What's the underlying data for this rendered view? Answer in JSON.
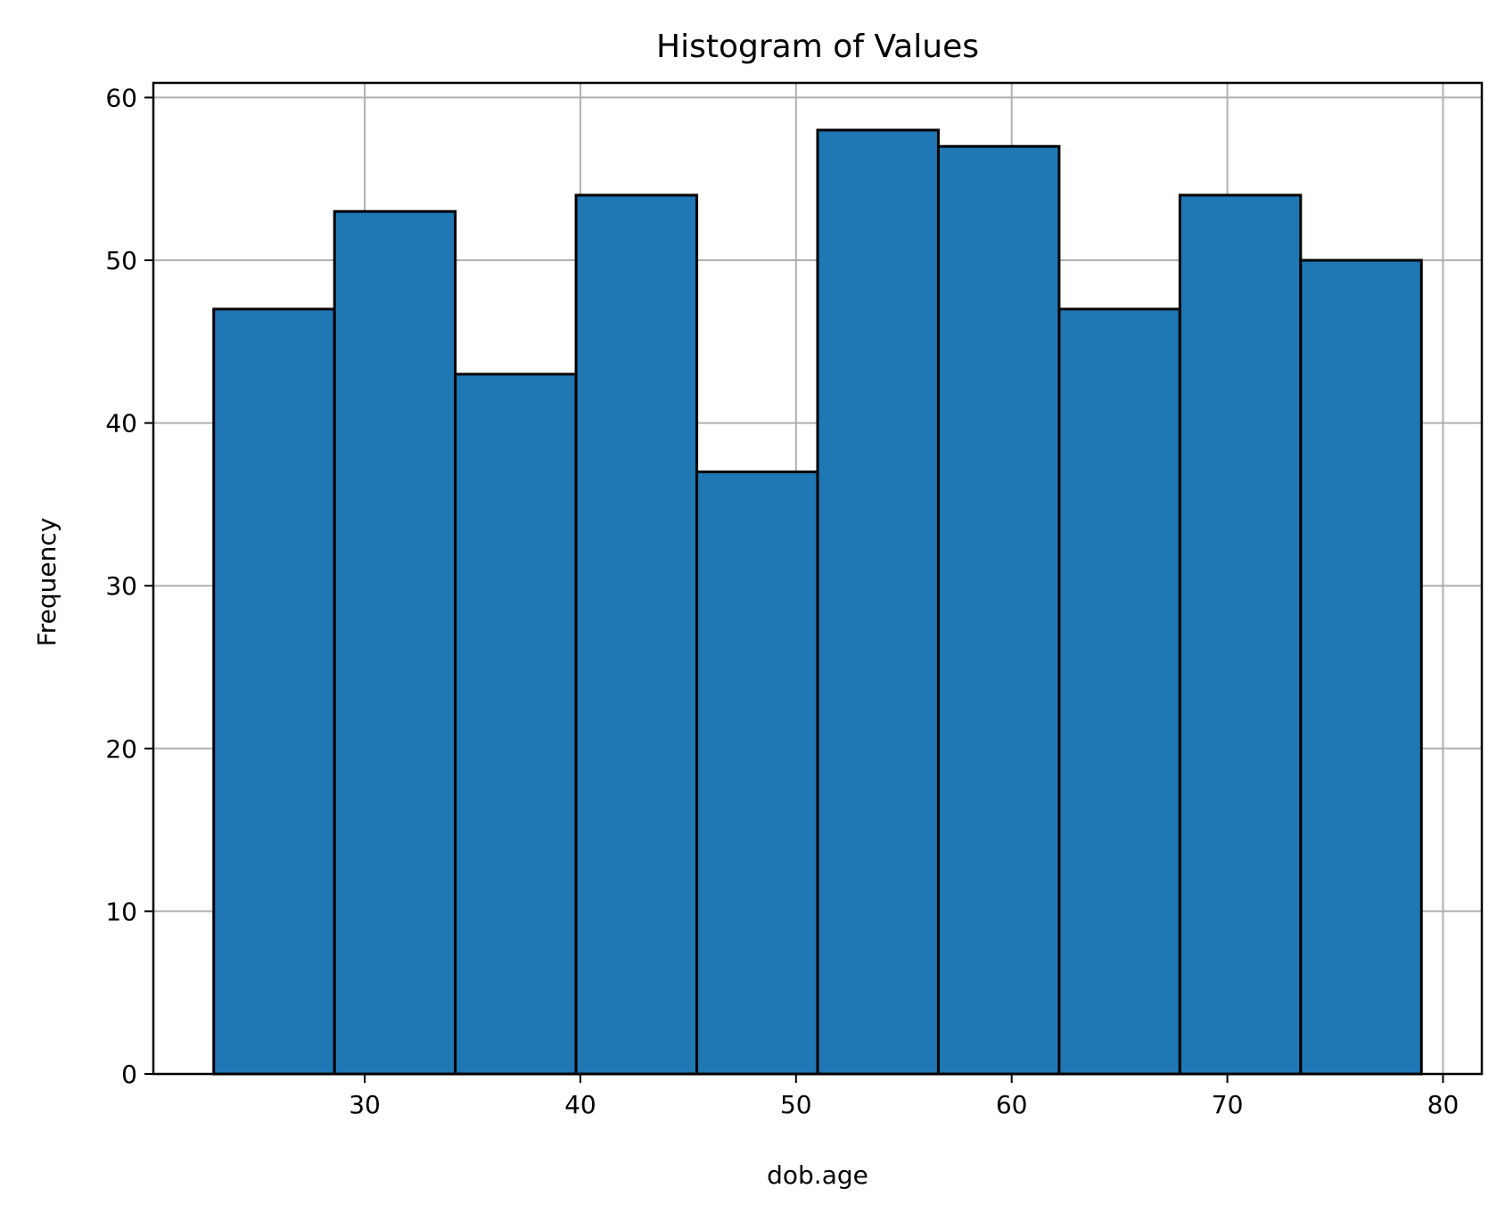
{
  "chart_data": {
    "type": "bar",
    "title": "Histogram of Values",
    "xlabel": "dob.age",
    "ylabel": "Frequency",
    "bin_edges": [
      23,
      28.6,
      34.2,
      39.8,
      45.4,
      51,
      56.6,
      62.2,
      67.8,
      73.4,
      79
    ],
    "values": [
      47,
      53,
      43,
      54,
      37,
      58,
      57,
      47,
      54,
      50
    ],
    "xlim": [
      20.2,
      81.8
    ],
    "ylim": [
      0,
      60.9
    ],
    "xticks": [
      30,
      40,
      50,
      60,
      70,
      80
    ],
    "yticks": [
      0,
      10,
      20,
      30,
      40,
      50,
      60
    ],
    "grid": true,
    "colors": {
      "bar_fill": "#1f77b4",
      "bar_edge": "#000000",
      "grid": "#b0b0b0",
      "axes": "#000000"
    }
  }
}
